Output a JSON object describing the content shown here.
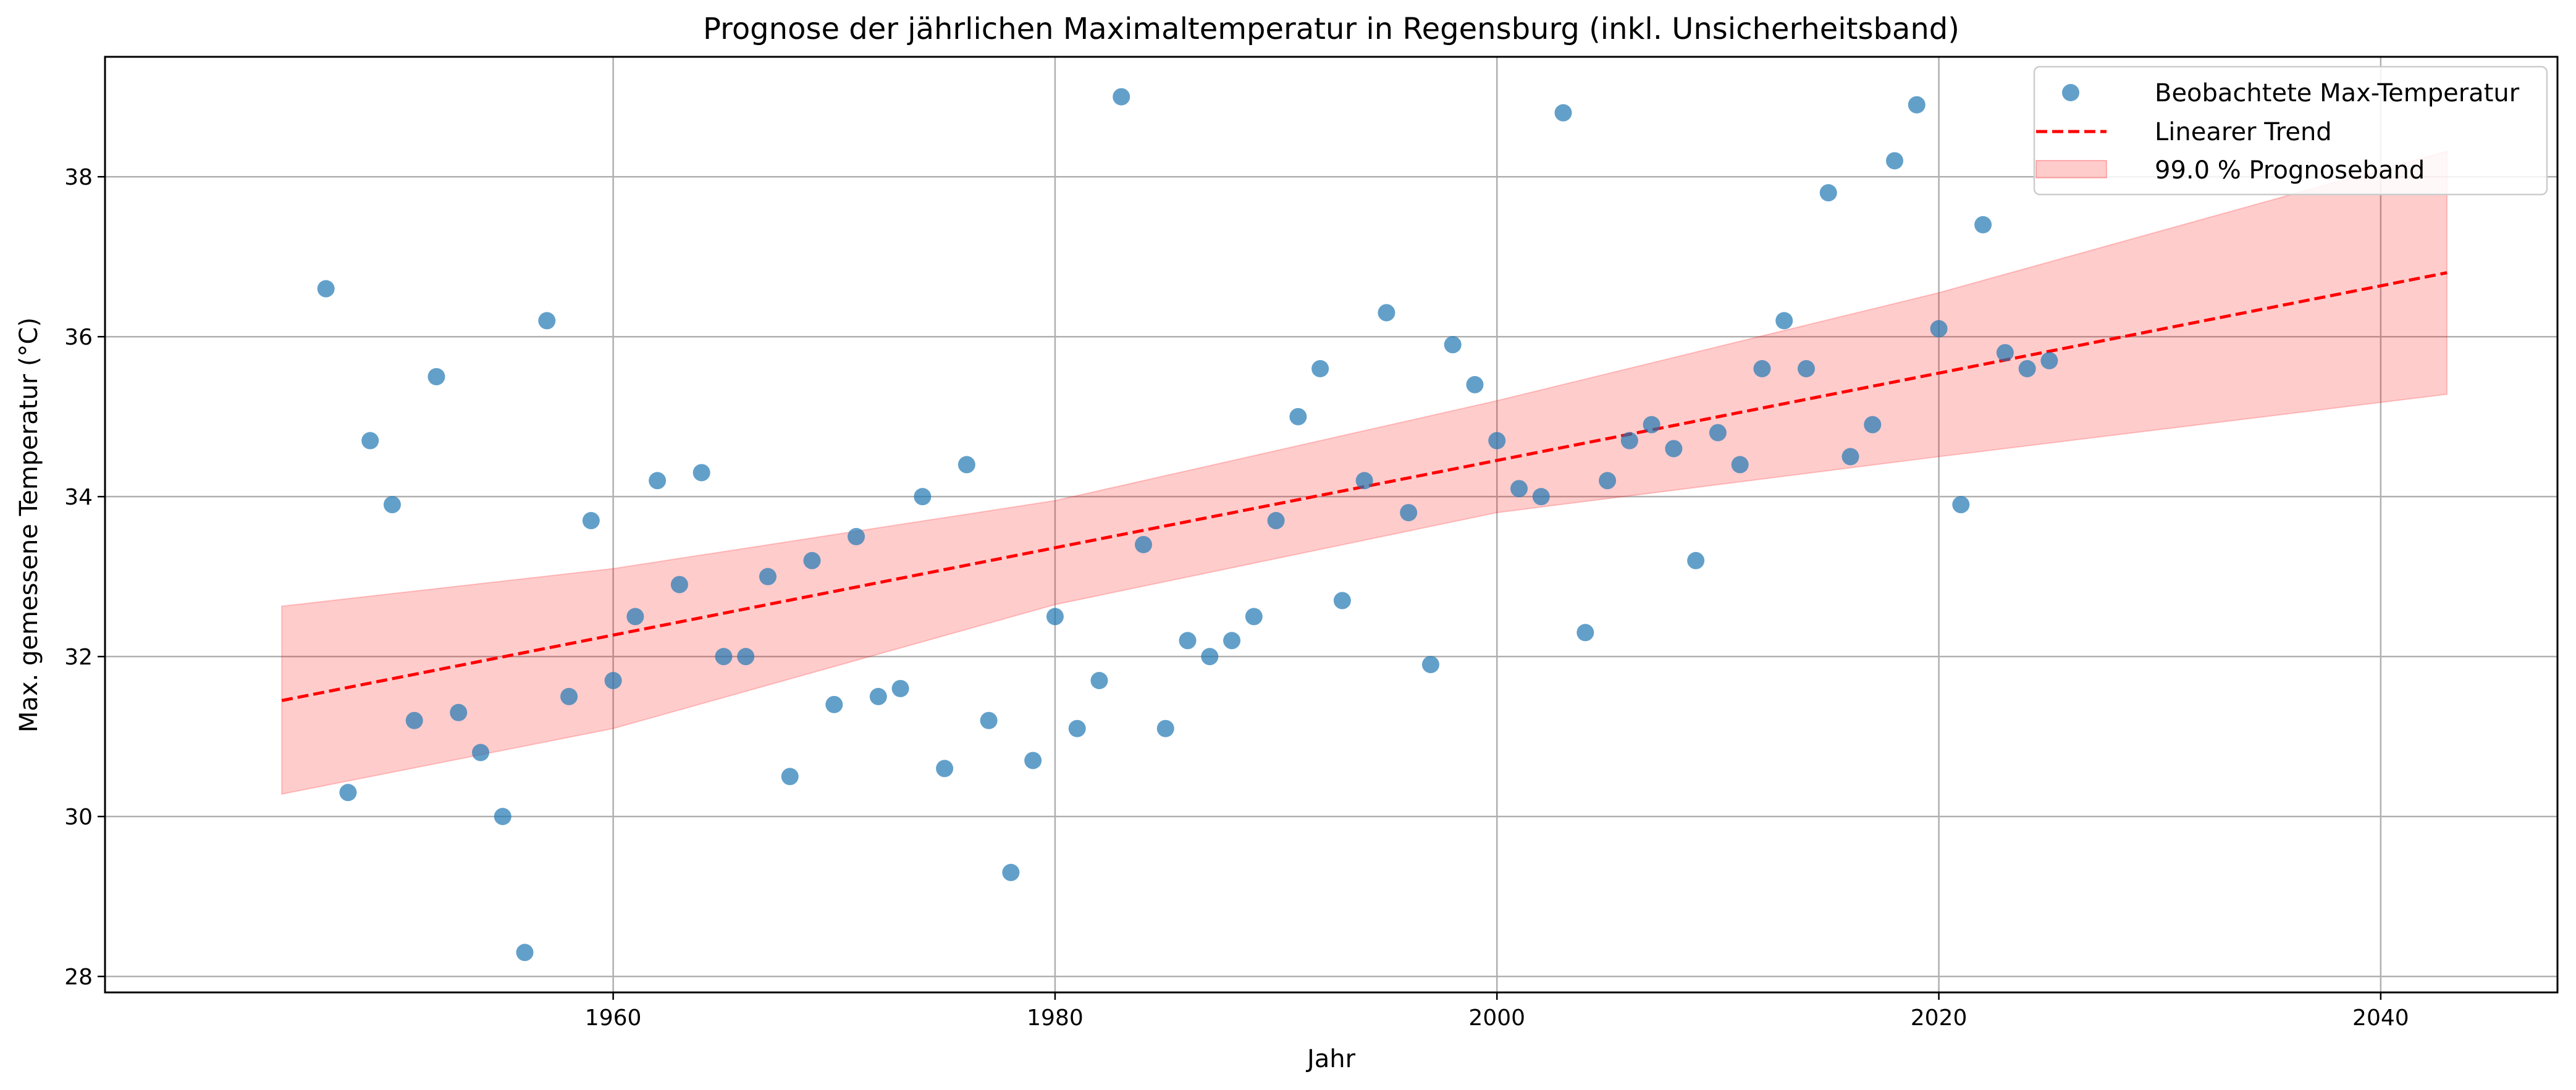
{
  "chart_data": {
    "type": "scatter",
    "title": "Prognose der jährlichen Maximaltemperatur in Regensburg (inkl. Unsicherheitsband)",
    "xlabel": "Jahr",
    "ylabel": "Max. gemessene Temperatur (°C)",
    "xlim": [
      1937,
      2048
    ],
    "ylim": [
      27.8,
      39.5
    ],
    "xticks": [
      1960,
      1980,
      2000,
      2020,
      2040
    ],
    "yticks": [
      28,
      30,
      32,
      34,
      36,
      38
    ],
    "grid": true,
    "legend_position": "top-right",
    "colors": {
      "points": "#1f77b4",
      "trend": "#ff0000",
      "band": "#ff0000"
    },
    "series": [
      {
        "name": "Beobachtete Max-Temperatur",
        "kind": "scatter",
        "x": [
          1947,
          1948,
          1949,
          1950,
          1951,
          1952,
          1953,
          1954,
          1955,
          1956,
          1957,
          1958,
          1959,
          1960,
          1961,
          1962,
          1963,
          1964,
          1965,
          1966,
          1967,
          1968,
          1969,
          1970,
          1971,
          1972,
          1973,
          1974,
          1975,
          1976,
          1977,
          1978,
          1979,
          1980,
          1981,
          1982,
          1983,
          1984,
          1985,
          1986,
          1987,
          1988,
          1989,
          1990,
          1991,
          1992,
          1993,
          1994,
          1995,
          1996,
          1997,
          1998,
          1999,
          2000,
          2001,
          2002,
          2003,
          2004,
          2005,
          2006,
          2007,
          2008,
          2009,
          2010,
          2011,
          2012,
          2013,
          2014,
          2015,
          2016,
          2017,
          2018,
          2019,
          2020,
          2021,
          2022,
          2023,
          2024,
          2025
        ],
        "y": [
          36.6,
          30.3,
          34.7,
          33.9,
          31.2,
          35.5,
          31.3,
          30.8,
          30.0,
          28.3,
          36.2,
          31.5,
          33.7,
          31.7,
          32.5,
          34.2,
          32.9,
          34.3,
          32.0,
          32.0,
          33.0,
          30.5,
          33.2,
          31.4,
          33.5,
          31.5,
          31.6,
          34.0,
          30.6,
          34.4,
          31.2,
          29.3,
          30.7,
          32.5,
          31.1,
          31.7,
          39.0,
          33.4,
          31.1,
          32.2,
          32.0,
          32.2,
          32.5,
          33.7,
          35.0,
          35.6,
          32.7,
          34.2,
          36.3,
          33.8,
          31.9,
          35.9,
          35.4,
          34.7,
          34.1,
          34.0,
          38.8,
          32.3,
          34.2,
          34.7,
          34.9,
          34.6,
          33.2,
          34.8,
          34.4,
          35.6,
          36.2,
          35.6,
          37.8,
          34.5,
          34.9,
          38.2,
          38.9,
          36.1,
          33.9,
          37.4,
          35.8,
          35.6,
          35.7
        ]
      },
      {
        "name": "Linearer Trend",
        "kind": "line",
        "x": [
          1945,
          2043
        ],
        "y": [
          31.45,
          36.8
        ]
      },
      {
        "name": "99.0 % Prognoseband",
        "kind": "band",
        "x": [
          1945,
          1960,
          1980,
          2000,
          2020,
          2043
        ],
        "lower": [
          30.28,
          31.1,
          32.65,
          33.8,
          34.5,
          35.28
        ],
        "upper": [
          32.63,
          33.1,
          33.95,
          35.2,
          36.55,
          38.32
        ]
      }
    ]
  }
}
